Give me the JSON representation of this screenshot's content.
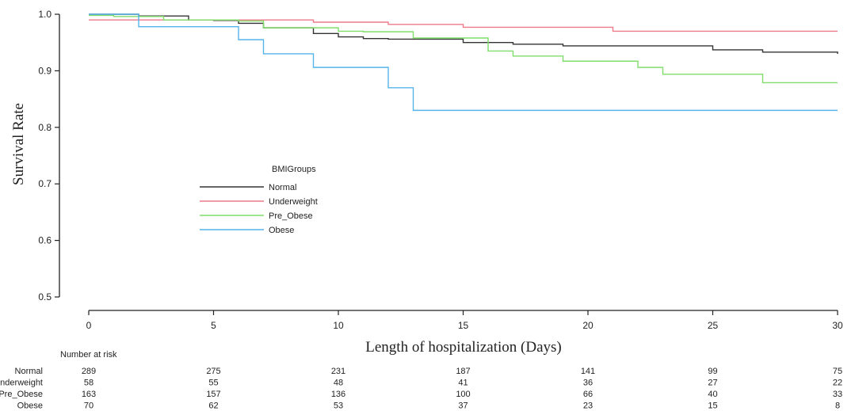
{
  "chart_data": {
    "type": "line",
    "title": "",
    "xlabel": "Length of hospitalization (Days)",
    "ylabel": "Survival Rate",
    "xlim": [
      0,
      30
    ],
    "ylim": [
      0.5,
      1.0
    ],
    "xticks": [
      0,
      5,
      10,
      15,
      20,
      25,
      30
    ],
    "xtick_labels": [
      "0",
      "5",
      "10",
      "15",
      "20",
      "25",
      "30"
    ],
    "yticks": [
      0.5,
      0.6,
      0.7,
      0.8,
      0.9,
      1.0
    ],
    "ytick_labels": [
      "0.5",
      "0.6",
      "0.7",
      "0.8",
      "0.9",
      "1.0"
    ],
    "grid": false,
    "legend": {
      "title": "BMIGroups",
      "position": "center-left"
    },
    "series": [
      {
        "name": "Normal",
        "color": "#333333",
        "x": [
          0,
          2,
          4,
          5,
          6,
          7,
          9,
          10,
          11,
          12,
          15,
          17,
          19,
          20,
          21,
          22,
          23,
          24,
          25,
          26,
          27,
          28,
          29,
          30
        ],
        "y": [
          1.0,
          0.997,
          0.99,
          0.989,
          0.984,
          0.976,
          0.966,
          0.96,
          0.957,
          0.956,
          0.95,
          0.947,
          0.944,
          0.944,
          0.944,
          0.944,
          0.944,
          0.944,
          0.937,
          0.937,
          0.933,
          0.933,
          0.933,
          0.93
        ]
      },
      {
        "name": "Underweight",
        "color": "#ee7a8a",
        "x": [
          0,
          2,
          7,
          9,
          12,
          15,
          21,
          30
        ],
        "y": [
          0.99,
          0.99,
          0.99,
          0.986,
          0.982,
          0.977,
          0.97,
          0.97
        ]
      },
      {
        "name": "Pre_Obese",
        "color": "#80dd6a",
        "x": [
          0,
          1,
          3,
          6,
          7,
          10,
          11,
          13,
          16,
          17,
          19,
          22,
          23,
          27,
          30
        ],
        "y": [
          0.998,
          0.996,
          0.99,
          0.988,
          0.976,
          0.97,
          0.969,
          0.958,
          0.935,
          0.926,
          0.917,
          0.906,
          0.894,
          0.879,
          0.879
        ]
      },
      {
        "name": "Obese",
        "color": "#55b4ea",
        "x": [
          0,
          2,
          6,
          7,
          9,
          12,
          13,
          30
        ],
        "y": [
          1.0,
          0.978,
          0.955,
          0.93,
          0.906,
          0.87,
          0.83,
          0.83
        ]
      }
    ],
    "risk_table": {
      "title": "Number at risk",
      "times": [
        0,
        5,
        10,
        15,
        20,
        25,
        30
      ],
      "rows": [
        {
          "group": "Normal",
          "values": [
            289,
            275,
            231,
            187,
            141,
            99,
            75
          ]
        },
        {
          "group": "Underweight",
          "values": [
            58,
            55,
            48,
            41,
            36,
            27,
            22
          ]
        },
        {
          "group": "Pre_Obese",
          "values": [
            163,
            157,
            136,
            100,
            66,
            40,
            33
          ]
        },
        {
          "group": "Obese",
          "values": [
            70,
            62,
            53,
            37,
            23,
            15,
            8
          ]
        }
      ]
    }
  }
}
